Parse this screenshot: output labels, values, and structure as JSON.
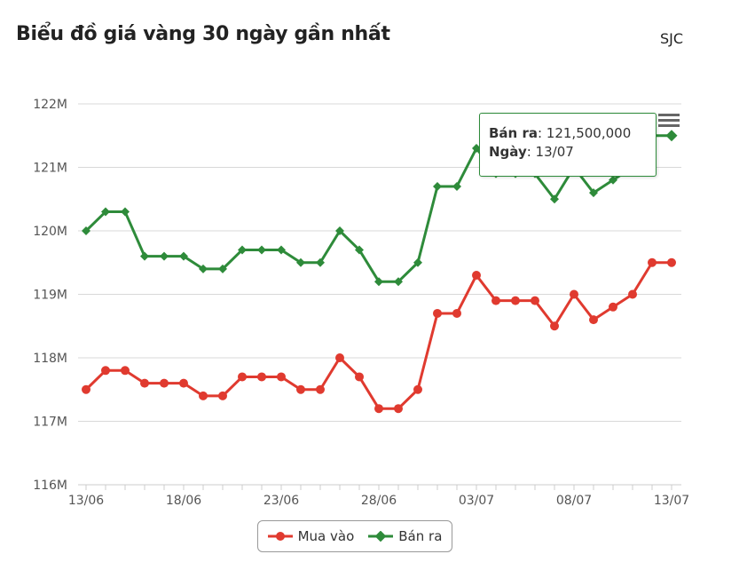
{
  "header": {
    "title": "Biểu đồ giá vàng 30 ngày gần nhất",
    "brand": "SJC"
  },
  "tooltip": {
    "label1": "Bán ra",
    "value1": ": 121,500,000",
    "label2": "Ngày",
    "value2": ": 13/07"
  },
  "colors": {
    "mua_vao": "#e03a2f",
    "ban_ra": "#2e8b3a",
    "grid": "#d8d8d8",
    "axis_text": "#555555"
  },
  "chart_data": {
    "type": "line",
    "title": "Biểu đồ giá vàng 30 ngày gần nhất",
    "ylim": [
      116,
      122
    ],
    "y_ticks": [
      "116M",
      "117M",
      "118M",
      "119M",
      "120M",
      "121M",
      "122M"
    ],
    "x_tick_labels": [
      "13/06",
      "18/06",
      "23/06",
      "28/06",
      "03/07",
      "08/07",
      "13/07"
    ],
    "grid": true,
    "legend_position": "bottom-center",
    "x": [
      "13/06",
      "14/06",
      "15/06",
      "16/06",
      "17/06",
      "18/06",
      "19/06",
      "20/06",
      "21/06",
      "22/06",
      "23/06",
      "24/06",
      "25/06",
      "26/06",
      "27/06",
      "28/06",
      "29/06",
      "30/06",
      "01/07",
      "02/07",
      "03/07",
      "04/07",
      "05/07",
      "06/07",
      "07/07",
      "08/07",
      "09/07",
      "10/07",
      "11/07",
      "12/07",
      "13/07"
    ],
    "series": [
      {
        "name": "Mua vào",
        "values": [
          117.5,
          117.8,
          117.8,
          117.6,
          117.6,
          117.6,
          117.4,
          117.4,
          117.7,
          117.7,
          117.7,
          117.5,
          117.5,
          118.0,
          117.7,
          117.2,
          117.2,
          117.5,
          118.7,
          118.7,
          119.3,
          118.9,
          118.9,
          118.9,
          118.5,
          119.0,
          118.6,
          118.8,
          119.0,
          119.5,
          119.5
        ]
      },
      {
        "name": "Bán ra",
        "values": [
          120.0,
          120.3,
          120.3,
          119.6,
          119.6,
          119.6,
          119.4,
          119.4,
          119.7,
          119.7,
          119.7,
          119.5,
          119.5,
          120.0,
          119.7,
          119.2,
          119.2,
          119.5,
          120.7,
          120.7,
          121.3,
          120.9,
          120.9,
          120.9,
          120.5,
          121.0,
          120.6,
          120.8,
          121.0,
          121.5,
          121.5
        ]
      }
    ]
  }
}
